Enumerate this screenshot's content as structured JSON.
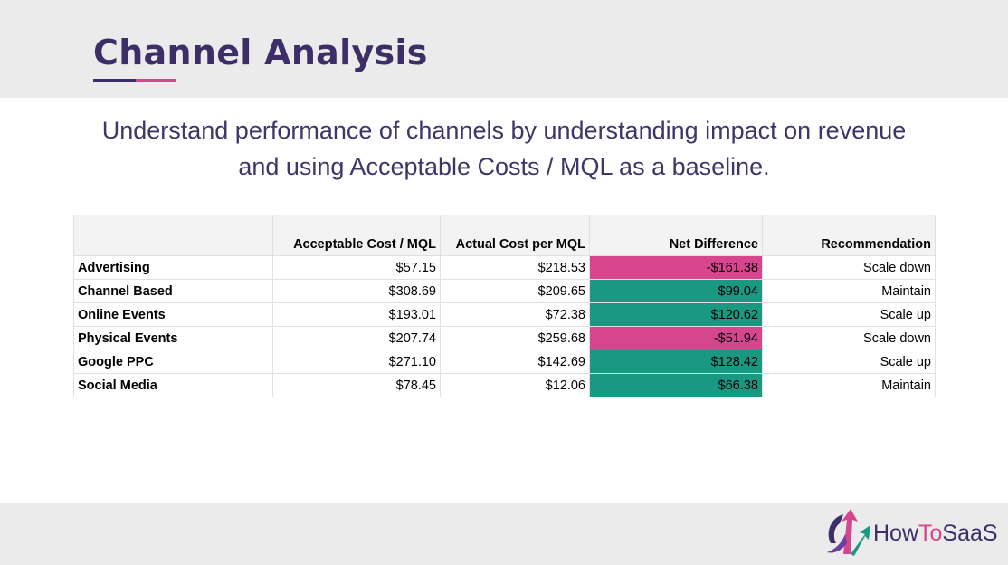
{
  "header": {
    "title": "Channel Analysis"
  },
  "subtitle": [
    "Understand performance of channels by understanding impact on revenue",
    "and using Acceptable Costs / MQL as a baseline."
  ],
  "table": {
    "columns": [
      "",
      "Acceptable Cost / MQL",
      "Actual Cost per MQL",
      "Net Difference",
      "Recommendation"
    ],
    "rows": [
      [
        "Advertising",
        "$57.15",
        "$218.53",
        "-$161.38",
        "Scale down"
      ],
      [
        "Channel Based",
        "$308.69",
        "$209.65",
        "$99.04",
        "Maintain"
      ],
      [
        "Online Events",
        "$193.01",
        "$72.38",
        "$120.62",
        "Scale up"
      ],
      [
        "Physical Events",
        "$207.74",
        "$259.68",
        "-$51.94",
        "Scale down"
      ],
      [
        "Google PPC",
        "$271.10",
        "$142.69",
        "$128.42",
        "Scale up"
      ],
      [
        "Social Media",
        "$78.45",
        "$12.06",
        "$66.38",
        "Maintain"
      ]
    ],
    "highlight_column": 3,
    "highlight_fills": [
      "#d5468f",
      "#1a9882",
      "#1a9882",
      "#d5468f",
      "#1a9882",
      "#1a9882"
    ]
  },
  "logo": {
    "parts": [
      "How",
      "To",
      "SaaS"
    ]
  }
}
